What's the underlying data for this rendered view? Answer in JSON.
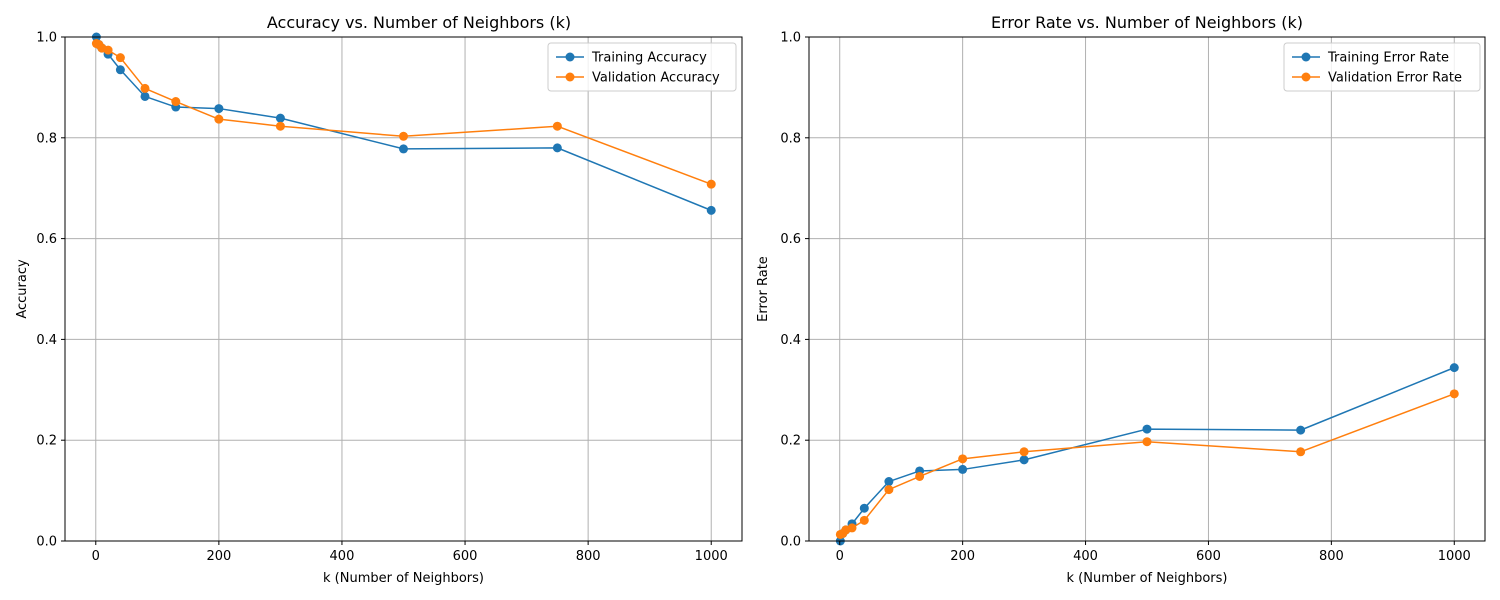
{
  "chart_data": [
    {
      "type": "line",
      "title": "Accuracy vs. Number of Neighbors (k)",
      "xlabel": "k (Number of Neighbors)",
      "ylabel": "Accuracy",
      "xlim": [
        -50,
        1050
      ],
      "ylim": [
        0.0,
        1.0
      ],
      "xticks": [
        0,
        200,
        400,
        600,
        800,
        1000
      ],
      "yticks": [
        0.0,
        0.2,
        0.4,
        0.6,
        0.8,
        1.0
      ],
      "xtick_labels": [
        "0",
        "200",
        "400",
        "600",
        "800",
        "1000"
      ],
      "ytick_labels": [
        "0.0",
        "0.2",
        "0.4",
        "0.6",
        "0.8",
        "1.0"
      ],
      "grid": true,
      "legend_position": "top-right",
      "x": [
        1,
        5,
        10,
        20,
        40,
        80,
        130,
        200,
        300,
        500,
        750,
        1000
      ],
      "series": [
        {
          "name": "Training Accuracy",
          "color": "#1f77b4",
          "values": [
            1.0,
            0.985,
            0.978,
            0.966,
            0.935,
            0.882,
            0.861,
            0.858,
            0.839,
            0.778,
            0.78,
            0.656
          ]
        },
        {
          "name": "Validation Accuracy",
          "color": "#ff7f0e",
          "values": [
            0.987,
            0.985,
            0.978,
            0.974,
            0.959,
            0.898,
            0.872,
            0.837,
            0.823,
            0.803,
            0.823,
            0.708
          ]
        }
      ]
    },
    {
      "type": "line",
      "title": "Error Rate vs. Number of Neighbors (k)",
      "xlabel": "k (Number of Neighbors)",
      "ylabel": "Error Rate",
      "xlim": [
        -50,
        1050
      ],
      "ylim": [
        0.0,
        1.0
      ],
      "xticks": [
        0,
        200,
        400,
        600,
        800,
        1000
      ],
      "yticks": [
        0.0,
        0.2,
        0.4,
        0.6,
        0.8,
        1.0
      ],
      "xtick_labels": [
        "0",
        "200",
        "400",
        "600",
        "800",
        "1000"
      ],
      "ytick_labels": [
        "0.0",
        "0.2",
        "0.4",
        "0.6",
        "0.8",
        "1.0"
      ],
      "grid": true,
      "legend_position": "top-right",
      "x": [
        1,
        5,
        10,
        20,
        40,
        80,
        130,
        200,
        300,
        500,
        750,
        1000
      ],
      "series": [
        {
          "name": "Training Error Rate",
          "color": "#1f77b4",
          "values": [
            0.0,
            0.015,
            0.022,
            0.034,
            0.065,
            0.118,
            0.139,
            0.142,
            0.161,
            0.222,
            0.22,
            0.344
          ]
        },
        {
          "name": "Validation Error Rate",
          "color": "#ff7f0e",
          "values": [
            0.013,
            0.015,
            0.022,
            0.026,
            0.041,
            0.102,
            0.128,
            0.163,
            0.177,
            0.197,
            0.177,
            0.292
          ]
        }
      ]
    }
  ]
}
